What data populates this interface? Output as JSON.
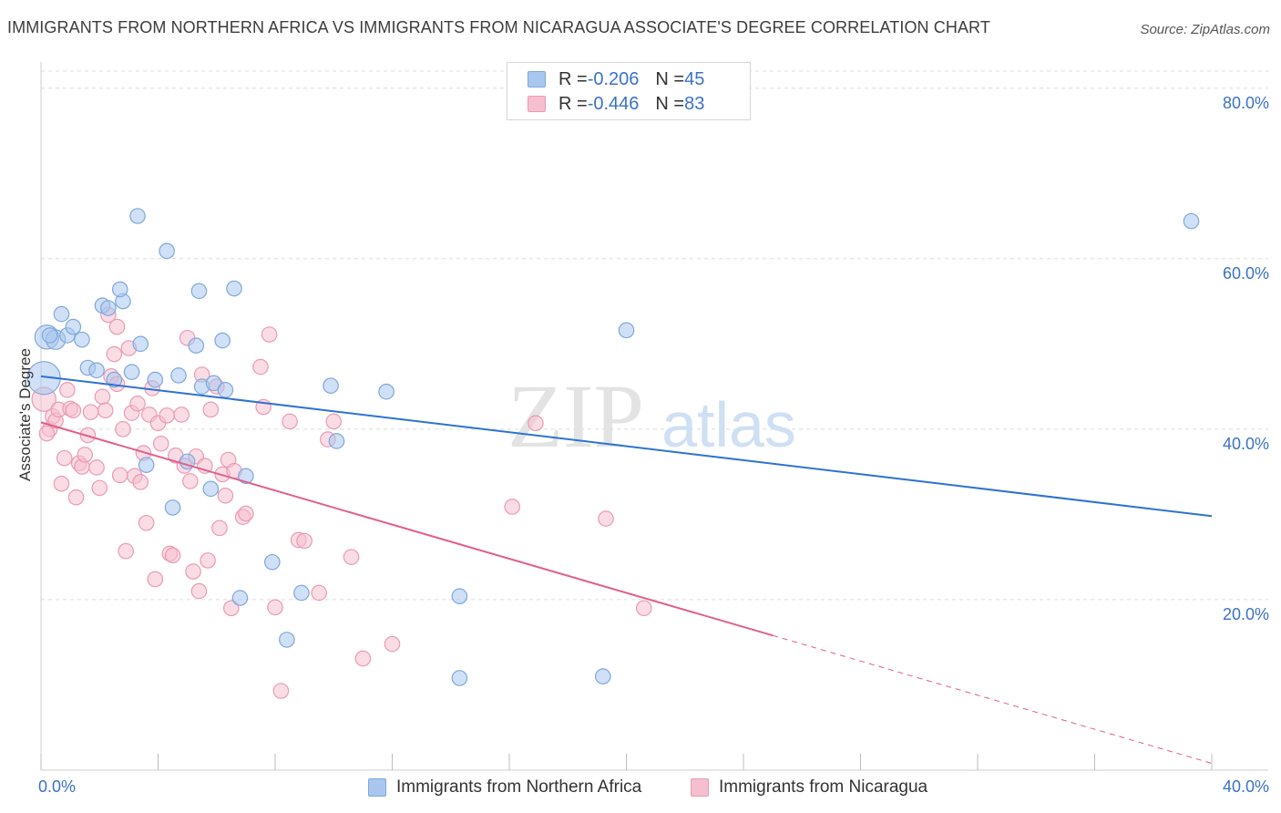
{
  "title": "IMMIGRANTS FROM NORTHERN AFRICA VS IMMIGRANTS FROM NICARAGUA ASSOCIATE'S DEGREE CORRELATION CHART",
  "source": "Source: ZipAtlas.com",
  "watermark": {
    "zip": "ZIP",
    "atlas": "atlas"
  },
  "legend": {
    "rows": [
      {
        "r_label": "R = ",
        "r_value": "-0.206",
        "n_label": "N = ",
        "n_value": "45"
      },
      {
        "r_label": "R = ",
        "r_value": "-0.446",
        "n_label": "N = ",
        "n_value": "83"
      }
    ]
  },
  "colors": {
    "blue_fill": "#a9c7ee",
    "blue_stroke": "#7fa8dc",
    "blue_line": "#2e72d2",
    "pink_fill": "#f6bfd0",
    "pink_stroke": "#eb9ab4",
    "pink_line": "#e0608c",
    "grid": "#dcdcdc",
    "axis_text": "#3a72c8"
  },
  "chart_data": {
    "type": "scatter",
    "ylabel": "Associate's Degree",
    "xlabel": "",
    "x_tick_labels": {
      "left": "0.0%",
      "right": "40.0%"
    },
    "y_tick_labels": [
      "20.0%",
      "40.0%",
      "60.0%",
      "80.0%"
    ],
    "xlim": [
      0,
      40
    ],
    "ylim": [
      0,
      82
    ],
    "series": [
      {
        "name": "Immigrants from Northern Africa",
        "color": "#a9c7ee",
        "trend": {
          "x0": 0.0,
          "y0": 46.2,
          "x1": 40.0,
          "y1": 29.8
        },
        "points": [
          [
            0.2,
            50.8,
            1.6
          ],
          [
            0.5,
            50.5,
            1.3
          ],
          [
            0.7,
            53.5,
            1.0
          ],
          [
            0.9,
            51.0,
            1.0
          ],
          [
            1.1,
            52.0,
            1.0
          ],
          [
            1.4,
            50.5,
            1.0
          ],
          [
            1.6,
            47.2,
            1.0
          ],
          [
            1.9,
            46.9,
            1.0
          ],
          [
            2.1,
            54.5,
            1.0
          ],
          [
            2.3,
            54.2,
            1.0
          ],
          [
            2.5,
            45.8,
            1.0
          ],
          [
            2.8,
            55.0,
            1.0
          ],
          [
            2.7,
            56.4,
            1.0
          ],
          [
            3.1,
            46.7,
            1.0
          ],
          [
            3.4,
            50.0,
            1.0
          ],
          [
            3.3,
            65.0,
            1.0
          ],
          [
            3.6,
            35.8,
            1.0
          ],
          [
            3.9,
            45.8,
            1.0
          ],
          [
            4.3,
            60.9,
            1.0
          ],
          [
            4.5,
            30.8,
            1.0
          ],
          [
            4.7,
            46.3,
            1.0
          ],
          [
            5.0,
            36.2,
            1.0
          ],
          [
            5.3,
            49.8,
            1.0
          ],
          [
            5.4,
            56.2,
            1.0
          ],
          [
            5.5,
            45.0,
            1.0
          ],
          [
            5.8,
            33.0,
            1.0
          ],
          [
            5.9,
            45.4,
            1.0
          ],
          [
            6.3,
            44.6,
            1.0
          ],
          [
            6.2,
            50.4,
            1.0
          ],
          [
            6.6,
            56.5,
            1.0
          ],
          [
            6.8,
            20.2,
            1.0
          ],
          [
            7.0,
            34.5,
            1.0
          ],
          [
            7.9,
            24.4,
            1.0
          ],
          [
            8.4,
            15.3,
            1.0
          ],
          [
            8.9,
            20.8,
            1.0
          ],
          [
            9.9,
            45.1,
            1.0
          ],
          [
            10.1,
            38.6,
            1.0
          ],
          [
            11.8,
            44.4,
            1.0
          ],
          [
            14.3,
            10.8,
            1.0
          ],
          [
            14.3,
            20.4,
            1.0
          ],
          [
            19.2,
            11.0,
            1.0
          ],
          [
            20.0,
            51.6,
            1.0
          ],
          [
            39.3,
            64.4,
            1.0
          ],
          [
            0.1,
            46.0,
            2.2
          ],
          [
            0.3,
            51.0,
            1.0
          ]
        ]
      },
      {
        "name": "Immigrants from Nicaragua",
        "color": "#f6bfd0",
        "trend": {
          "x0": 0.0,
          "y0": 40.8,
          "x1": 25.0,
          "y1": 15.8,
          "dash_to": {
            "x": 40.0,
            "y": 0.8
          }
        },
        "points": [
          [
            0.1,
            43.5,
            1.6
          ],
          [
            0.3,
            40.0,
            1.0
          ],
          [
            0.4,
            41.5,
            1.0
          ],
          [
            0.5,
            41.0,
            1.0
          ],
          [
            0.6,
            42.3,
            1.0
          ],
          [
            0.7,
            33.6,
            1.0
          ],
          [
            0.8,
            36.6,
            1.0
          ],
          [
            0.9,
            44.6,
            1.0
          ],
          [
            1.0,
            42.4,
            1.0
          ],
          [
            1.2,
            32.0,
            1.0
          ],
          [
            1.3,
            36.0,
            1.0
          ],
          [
            1.4,
            35.6,
            1.0
          ],
          [
            1.5,
            37.0,
            1.0
          ],
          [
            1.6,
            39.3,
            1.0
          ],
          [
            1.7,
            42.0,
            1.0
          ],
          [
            1.9,
            35.5,
            1.0
          ],
          [
            2.0,
            33.1,
            1.0
          ],
          [
            2.1,
            43.8,
            1.0
          ],
          [
            2.2,
            42.2,
            1.0
          ],
          [
            2.3,
            53.4,
            1.0
          ],
          [
            2.4,
            46.2,
            1.0
          ],
          [
            2.5,
            48.8,
            1.0
          ],
          [
            2.6,
            52.0,
            1.0
          ],
          [
            2.7,
            34.6,
            1.0
          ],
          [
            2.8,
            40.0,
            1.0
          ],
          [
            2.9,
            25.7,
            1.0
          ],
          [
            3.0,
            49.5,
            1.0
          ],
          [
            3.1,
            41.9,
            1.0
          ],
          [
            3.2,
            34.5,
            1.0
          ],
          [
            3.3,
            43.0,
            1.0
          ],
          [
            3.4,
            33.8,
            1.0
          ],
          [
            3.5,
            37.2,
            1.0
          ],
          [
            3.6,
            29.0,
            1.0
          ],
          [
            3.7,
            41.7,
            1.0
          ],
          [
            3.8,
            44.8,
            1.0
          ],
          [
            3.9,
            22.4,
            1.0
          ],
          [
            4.0,
            40.7,
            1.0
          ],
          [
            4.1,
            38.3,
            1.0
          ],
          [
            4.3,
            41.6,
            1.0
          ],
          [
            4.4,
            25.4,
            1.0
          ],
          [
            4.5,
            25.2,
            1.0
          ],
          [
            4.6,
            36.9,
            1.0
          ],
          [
            4.8,
            41.7,
            1.0
          ],
          [
            4.9,
            35.7,
            1.0
          ],
          [
            5.0,
            50.7,
            1.0
          ],
          [
            5.1,
            33.9,
            1.0
          ],
          [
            5.2,
            23.3,
            1.0
          ],
          [
            5.3,
            36.8,
            1.0
          ],
          [
            5.4,
            21.0,
            1.0
          ],
          [
            5.5,
            46.4,
            1.0
          ],
          [
            5.6,
            35.7,
            1.0
          ],
          [
            5.7,
            24.6,
            1.0
          ],
          [
            5.8,
            42.3,
            1.0
          ],
          [
            6.0,
            45.0,
            1.0
          ],
          [
            6.1,
            28.4,
            1.0
          ],
          [
            6.2,
            34.7,
            1.0
          ],
          [
            6.3,
            32.2,
            1.0
          ],
          [
            6.4,
            36.4,
            1.0
          ],
          [
            6.5,
            19.0,
            1.0
          ],
          [
            6.6,
            35.1,
            1.0
          ],
          [
            6.9,
            29.7,
            1.0
          ],
          [
            7.0,
            30.1,
            1.0
          ],
          [
            7.5,
            47.3,
            1.0
          ],
          [
            7.6,
            42.6,
            1.0
          ],
          [
            7.8,
            51.1,
            1.0
          ],
          [
            8.0,
            19.1,
            1.0
          ],
          [
            8.2,
            9.3,
            1.0
          ],
          [
            8.5,
            40.9,
            1.0
          ],
          [
            8.8,
            27.0,
            1.0
          ],
          [
            9.0,
            26.9,
            1.0
          ],
          [
            9.5,
            20.8,
            1.0
          ],
          [
            9.8,
            38.8,
            1.0
          ],
          [
            10.0,
            40.9,
            1.0
          ],
          [
            10.6,
            25.0,
            1.0
          ],
          [
            11.0,
            13.1,
            1.0
          ],
          [
            12.0,
            14.8,
            1.0
          ],
          [
            16.1,
            30.9,
            1.0
          ],
          [
            16.9,
            40.7,
            1.0
          ],
          [
            19.3,
            29.5,
            1.0
          ],
          [
            20.6,
            19.0,
            1.0
          ],
          [
            0.2,
            39.5,
            1.0
          ],
          [
            1.1,
            42.2,
            1.0
          ],
          [
            2.6,
            45.3,
            1.0
          ]
        ]
      }
    ]
  },
  "bottom_legend": [
    "Immigrants from Northern Africa",
    "Immigrants from Nicaragua"
  ]
}
